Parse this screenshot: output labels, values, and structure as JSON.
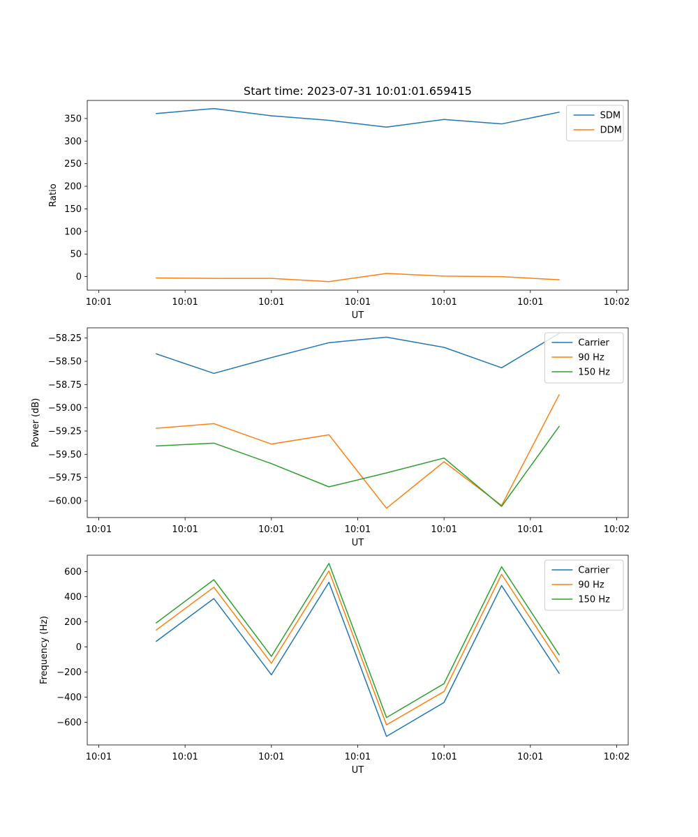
{
  "figure": {
    "title": "Start time: 2023-07-31 10:01:01.659415"
  },
  "chart_data": [
    {
      "type": "line",
      "title": "Start time: 2023-07-31 10:01:01.659415",
      "xlabel": "UT",
      "ylabel": "Ratio",
      "x": [
        0.5,
        1.0,
        1.5,
        2.0,
        2.5,
        3.0,
        3.5,
        4.0
      ],
      "xlim": [
        -0.1,
        4.6
      ],
      "x_ticks": [
        0,
        0.75,
        1.5,
        2.25,
        3.0,
        3.75,
        4.5
      ],
      "x_tick_labels": [
        "10:01",
        "10:01",
        "10:01",
        "10:01",
        "10:01",
        "10:01",
        "10:02"
      ],
      "ylim": [
        -30,
        390
      ],
      "y_ticks": [
        0,
        50,
        100,
        150,
        200,
        250,
        300,
        350
      ],
      "y_tick_labels": [
        "0",
        "50",
        "100",
        "150",
        "200",
        "250",
        "300",
        "350"
      ],
      "legend_position": "top-right",
      "series": [
        {
          "name": "SDM",
          "color": "#1f77b4",
          "values": [
            361,
            372,
            356,
            346,
            331,
            348,
            338,
            364
          ]
        },
        {
          "name": "DDM",
          "color": "#ff7f0e",
          "values": [
            -3,
            -4,
            -4,
            -11,
            7,
            1,
            0,
            -7
          ]
        }
      ]
    },
    {
      "type": "line",
      "title": "",
      "xlabel": "UT",
      "ylabel": "Power (dB)",
      "x": [
        0.5,
        1.0,
        1.5,
        2.0,
        2.5,
        3.0,
        3.5,
        4.0
      ],
      "xlim": [
        -0.1,
        4.6
      ],
      "x_ticks": [
        0,
        0.75,
        1.5,
        2.25,
        3.0,
        3.75,
        4.5
      ],
      "x_tick_labels": [
        "10:01",
        "10:01",
        "10:01",
        "10:01",
        "10:01",
        "10:01",
        "10:02"
      ],
      "ylim": [
        -60.18,
        -58.14
      ],
      "y_ticks": [
        -60.0,
        -59.75,
        -59.5,
        -59.25,
        -59.0,
        -58.75,
        -58.5,
        -58.25
      ],
      "y_tick_labels": [
        "−60.00",
        "−59.75",
        "−59.50",
        "−59.25",
        "−59.00",
        "−58.75",
        "−58.50",
        "−58.25"
      ],
      "legend_position": "top-right",
      "series": [
        {
          "name": "Carrier",
          "color": "#1f77b4",
          "values": [
            -58.42,
            -58.63,
            -58.46,
            -58.3,
            -58.24,
            -58.35,
            -58.57,
            -58.2
          ]
        },
        {
          "name": "90 Hz",
          "color": "#ff7f0e",
          "values": [
            -59.22,
            -59.17,
            -59.39,
            -59.29,
            -60.08,
            -59.58,
            -60.05,
            -58.86
          ]
        },
        {
          "name": "150 Hz",
          "color": "#2ca02c",
          "values": [
            -59.41,
            -59.38,
            -59.6,
            -59.85,
            -59.7,
            -59.54,
            -60.06,
            -59.2
          ]
        }
      ]
    },
    {
      "type": "line",
      "title": "",
      "xlabel": "UT",
      "ylabel": "Frequency (Hz)",
      "x": [
        0.5,
        1.0,
        1.5,
        2.0,
        2.5,
        3.0,
        3.5,
        4.0
      ],
      "xlim": [
        -0.1,
        4.6
      ],
      "x_ticks": [
        0,
        0.75,
        1.5,
        2.25,
        3.0,
        3.75,
        4.5
      ],
      "x_tick_labels": [
        "10:01",
        "10:01",
        "10:01",
        "10:01",
        "10:01",
        "10:01",
        "10:02"
      ],
      "ylim": [
        -780,
        730
      ],
      "y_ticks": [
        -600,
        -400,
        -200,
        0,
        200,
        400,
        600
      ],
      "y_tick_labels": [
        "−600",
        "−400",
        "−200",
        "0",
        "200",
        "400",
        "600"
      ],
      "legend_position": "top-right",
      "series": [
        {
          "name": "Carrier",
          "color": "#1f77b4",
          "values": [
            45,
            385,
            -222,
            515,
            -712,
            -442,
            488,
            -210
          ]
        },
        {
          "name": "90 Hz",
          "color": "#ff7f0e",
          "values": [
            135,
            475,
            -130,
            605,
            -620,
            -355,
            578,
            -120
          ]
        },
        {
          "name": "150 Hz",
          "color": "#2ca02c",
          "values": [
            192,
            535,
            -75,
            665,
            -562,
            -292,
            638,
            -62
          ]
        }
      ]
    }
  ]
}
